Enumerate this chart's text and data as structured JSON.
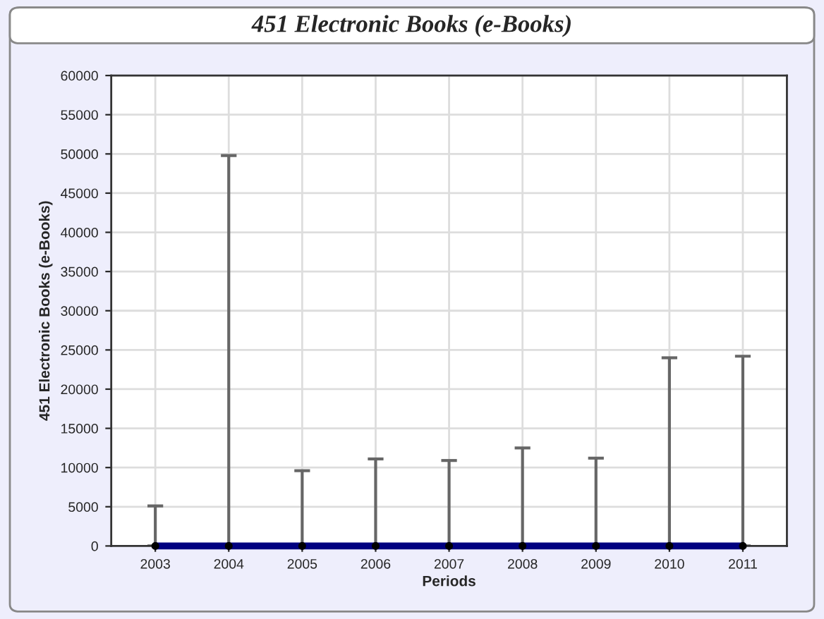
{
  "chart_data": {
    "type": "line",
    "title": "451 Electronic Books (e-Books)",
    "xlabel": "Periods",
    "ylabel": "451 Electronic Books (e-Books)",
    "categories": [
      "2003",
      "2004",
      "2005",
      "2006",
      "2007",
      "2008",
      "2009",
      "2010",
      "2011"
    ],
    "series": [
      {
        "color": "#000080",
        "values": [
          0,
          0,
          0,
          0,
          0,
          0,
          0,
          0,
          0
        ],
        "errors": [
          [
            0,
            5100
          ],
          [
            0,
            49800
          ],
          [
            0,
            9600
          ],
          [
            0,
            11100
          ],
          [
            0,
            10900
          ],
          [
            0,
            12500
          ],
          [
            0,
            11200
          ],
          [
            0,
            24000
          ],
          [
            0,
            24200
          ]
        ]
      }
    ],
    "ylim": [
      0,
      60000
    ],
    "yticks": [
      0,
      5000,
      10000,
      15000,
      20000,
      25000,
      30000,
      35000,
      40000,
      45000,
      50000,
      55000,
      60000
    ],
    "grid": true,
    "marker": "circle",
    "line_style": "solid"
  }
}
